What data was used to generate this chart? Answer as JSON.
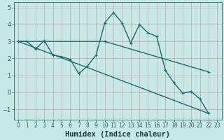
{
  "xlabel": "Humidex (Indice chaleur)",
  "background_color": "#c8e8e8",
  "grid_color": "#c0aaaa",
  "line_color": "#1a6b6b",
  "xlim": [
    -0.5,
    23.5
  ],
  "ylim": [
    -1.6,
    5.3
  ],
  "yticks": [
    -1,
    0,
    1,
    2,
    3,
    4,
    5
  ],
  "xticks": [
    0,
    1,
    2,
    3,
    4,
    5,
    6,
    7,
    8,
    9,
    10,
    11,
    12,
    13,
    14,
    15,
    16,
    17,
    18,
    19,
    20,
    21,
    22,
    23
  ],
  "line1_x": [
    0,
    1,
    2,
    3,
    4,
    5,
    6,
    7,
    8,
    9,
    10,
    11,
    12,
    13,
    14,
    15,
    16,
    17,
    18,
    19,
    20,
    21,
    22
  ],
  "line1_y": [
    3.0,
    3.0,
    2.55,
    3.05,
    2.2,
    2.1,
    1.95,
    1.1,
    1.55,
    2.2,
    4.1,
    4.7,
    4.1,
    2.9,
    4.0,
    3.5,
    3.3,
    1.3,
    0.55,
    -0.05,
    0.05,
    -0.4,
    -1.25
  ],
  "line2_x": [
    0,
    3,
    10,
    22
  ],
  "line2_y": [
    3.0,
    3.0,
    3.0,
    1.2
  ],
  "line3_x": [
    0,
    22
  ],
  "line3_y": [
    3.0,
    -1.25
  ],
  "markersize": 3.5,
  "linewidth": 1.0,
  "xlabel_fontsize": 7.5
}
